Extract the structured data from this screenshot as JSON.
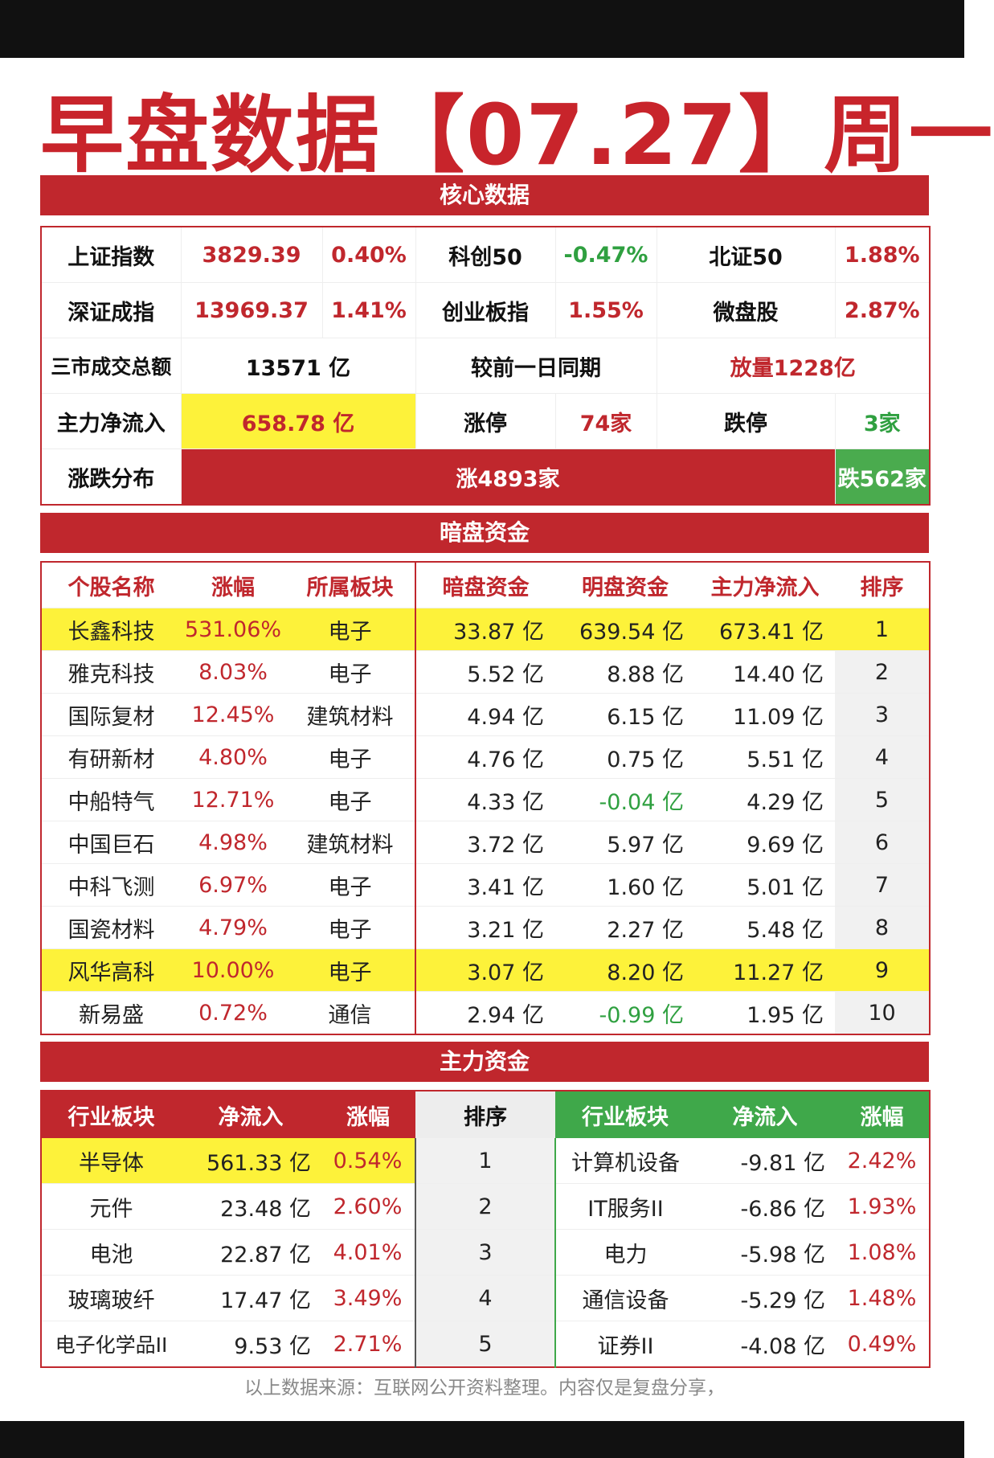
{
  "title": "早盘数据【07.27】周一",
  "sections": {
    "core": "核心数据",
    "dark": "暗盘资金",
    "funds": "主力资金"
  },
  "core": {
    "row1": [
      "上证指数",
      "3829.39",
      "0.40%",
      "科创50",
      "-0.47%",
      "北证50",
      "1.88%"
    ],
    "row2": [
      "深证成指",
      "13969.37",
      "1.41%",
      "创业板指",
      "1.55%",
      "微盘股",
      "2.87%"
    ],
    "row3": [
      "三市成交总额",
      "13571 亿",
      "较前一日同期",
      "放量1228亿"
    ],
    "row4": [
      "主力净流入",
      "658.78 亿",
      "涨停",
      "74家",
      "跌停",
      "3家"
    ],
    "row5": [
      "涨跌分布",
      "涨4893家",
      "跌562家"
    ]
  },
  "dark": {
    "headers": [
      "个股名称",
      "涨幅",
      "所属板块",
      "暗盘资金",
      "明盘资金",
      "主力净流入",
      "排序"
    ],
    "rows": [
      [
        "长鑫科技",
        "531.06%",
        "电子",
        "33.87 亿",
        "639.54 亿",
        "673.41 亿",
        "1"
      ],
      [
        "雅克科技",
        "8.03%",
        "电子",
        "5.52 亿",
        "8.88 亿",
        "14.40 亿",
        "2"
      ],
      [
        "国际复材",
        "12.45%",
        "建筑材料",
        "4.94 亿",
        "6.15 亿",
        "11.09 亿",
        "3"
      ],
      [
        "有研新材",
        "4.80%",
        "电子",
        "4.76 亿",
        "0.75 亿",
        "5.51 亿",
        "4"
      ],
      [
        "中船特气",
        "12.71%",
        "电子",
        "4.33 亿",
        "-0.04 亿",
        "4.29 亿",
        "5"
      ],
      [
        "中国巨石",
        "4.98%",
        "建筑材料",
        "3.72 亿",
        "5.97 亿",
        "9.69 亿",
        "6"
      ],
      [
        "中科飞测",
        "6.97%",
        "电子",
        "3.41 亿",
        "1.60 亿",
        "5.01 亿",
        "7"
      ],
      [
        "国瓷材料",
        "4.79%",
        "电子",
        "3.21 亿",
        "2.27 亿",
        "5.48 亿",
        "8"
      ],
      [
        "风华高科",
        "10.00%",
        "电子",
        "3.07 亿",
        "8.20 亿",
        "11.27 亿",
        "9"
      ],
      [
        "新易盛",
        "0.72%",
        "通信",
        "2.94 亿",
        "-0.99 亿",
        "1.95 亿",
        "10"
      ]
    ]
  },
  "funds": {
    "headers": [
      "行业板块",
      "净流入",
      "涨幅",
      "排序",
      "行业板块",
      "净流入",
      "涨幅"
    ],
    "rows": [
      [
        "半导体",
        "561.33 亿",
        "0.54%",
        "1",
        "计算机设备",
        "-9.81 亿",
        "2.42%"
      ],
      [
        "元件",
        "23.48 亿",
        "2.60%",
        "2",
        "IT服务II",
        "-6.86 亿",
        "1.93%"
      ],
      [
        "电池",
        "22.87 亿",
        "4.01%",
        "3",
        "电力",
        "-5.98 亿",
        "1.08%"
      ],
      [
        "玻璃玻纤",
        "17.47 亿",
        "3.49%",
        "4",
        "通信设备",
        "-5.29 亿",
        "1.48%"
      ],
      [
        "电子化学品II",
        "9.53 亿",
        "2.71%",
        "5",
        "证券II",
        "-4.08 亿",
        "0.49%"
      ]
    ]
  },
  "footer": "以上数据来源：互联网公开资料整理。内容仅是复盘分享，"
}
